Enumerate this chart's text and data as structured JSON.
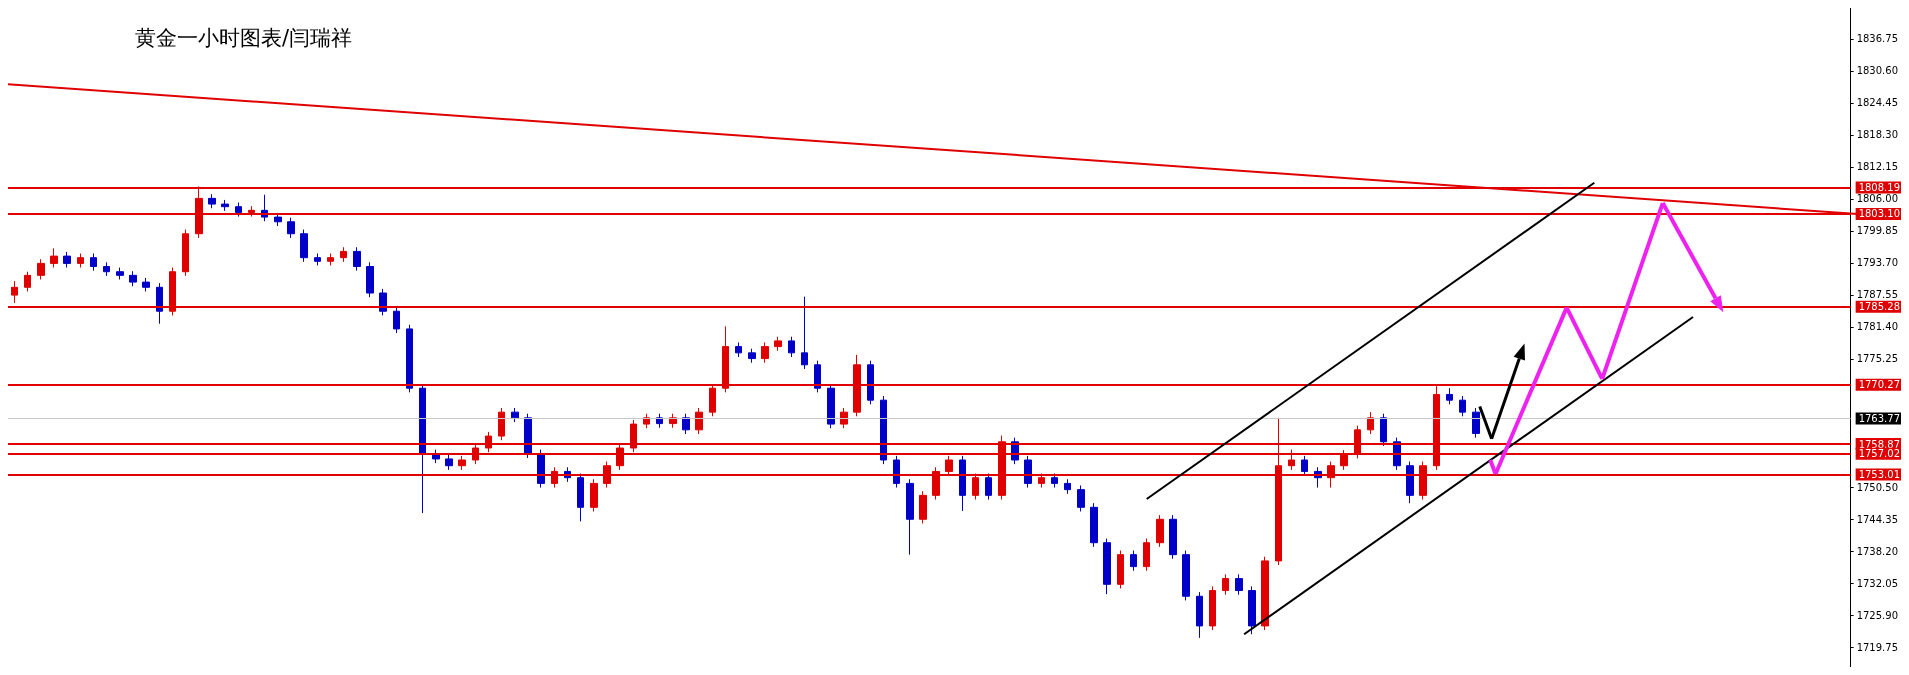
{
  "chart_data": {
    "type": "candlestick",
    "title": "黄金一小时图表/闫瑞祥",
    "categories": [
      null,
      null,
      null,
      null,
      null,
      null,
      null,
      null,
      null,
      null,
      null,
      null,
      null,
      null,
      null,
      null,
      null,
      null,
      null,
      null,
      null,
      null,
      null,
      null,
      null,
      null,
      null,
      null,
      null,
      null,
      null,
      null,
      null,
      null,
      null,
      null,
      null,
      null,
      null,
      null,
      null,
      null,
      null,
      null,
      null,
      null,
      null,
      null,
      null,
      null,
      null,
      null,
      null,
      null,
      null,
      null,
      null,
      null,
      null,
      null,
      null,
      null,
      null,
      null,
      null,
      null,
      null,
      null,
      null,
      null,
      null,
      null,
      null,
      null,
      null,
      null,
      null,
      null,
      null,
      null,
      null,
      null,
      null,
      null,
      null,
      null,
      null,
      null,
      null,
      null,
      null,
      null,
      null,
      null,
      null,
      null,
      null,
      null,
      null,
      null,
      null,
      null,
      null,
      null,
      null,
      null,
      null,
      null,
      null,
      null,
      null,
      null,
      null,
      null,
      null,
      null,
      null,
      null,
      null,
      null,
      null,
      null,
      null,
      null,
      null,
      null,
      null,
      null,
      null,
      null,
      null,
      null,
      null,
      null,
      null,
      null,
      null,
      null,
      null,
      null
    ],
    "ylim": [
      1716,
      1842.7
    ],
    "yticks": [
      {
        "value": 1719.75,
        "label": "1719.75"
      },
      {
        "value": 1725.9,
        "label": "1725.90"
      },
      {
        "value": 1732.05,
        "label": "1732.05"
      },
      {
        "value": 1738.2,
        "label": "1738.20"
      },
      {
        "value": 1744.35,
        "label": "1744.35"
      },
      {
        "value": 1750.5,
        "label": "1750.50"
      },
      {
        "value": 1775.25,
        "label": "1775.25"
      },
      {
        "value": 1781.4,
        "label": "1781.40"
      },
      {
        "value": 1787.55,
        "label": "1787.55"
      },
      {
        "value": 1793.7,
        "label": "1793.70"
      },
      {
        "value": 1799.85,
        "label": "1799.85"
      },
      {
        "value": 1806,
        "label": "1806.00"
      },
      {
        "value": 1812.15,
        "label": "1812.15"
      },
      {
        "value": 1818.3,
        "label": "1818.30"
      },
      {
        "value": 1824.45,
        "label": "1824.45"
      },
      {
        "value": 1830.6,
        "label": "1830.60"
      },
      {
        "value": 1836.75,
        "label": "1836.75"
      }
    ],
    "tick_labels": "y",
    "grid": false,
    "ref_lines": [
      {
        "axis": "y",
        "value": 1808.19,
        "label": "1808.19",
        "color": "#e00000"
      },
      {
        "axis": "y",
        "value": 1803.1,
        "label": "1803.10",
        "color": "#e00000"
      },
      {
        "axis": "y",
        "value": 1785.28,
        "label": "1785.28",
        "color": "#e00000"
      },
      {
        "axis": "y",
        "value": 1770.27,
        "label": "1770.27",
        "color": "#e00000"
      },
      {
        "axis": "y",
        "value": 1763.77,
        "label": "1763.77",
        "color": "#c8c8c8"
      },
      {
        "axis": "y",
        "value": 1758.87,
        "label": "1758.87",
        "color": "#e00000"
      },
      {
        "axis": "y",
        "value": 1757.02,
        "label": "1757.02",
        "color": "#e00000"
      },
      {
        "axis": "y",
        "value": 1753.01,
        "label": "1753.01",
        "color": "#e00000"
      }
    ],
    "series": [
      {
        "colors": [
          "#e00000",
          "#e00000",
          "#e00000",
          "#e00000",
          "#0000c8",
          "#e00000",
          "#0000c8",
          "#0000c8",
          "#0000c8",
          "#0000c8",
          "#0000c8",
          "#0000c8",
          "#e00000",
          "#e00000",
          "#e00000",
          "#0000c8",
          "#0000c8",
          "#0000c8",
          "#e00000",
          "#0000c8",
          "#0000c8",
          "#0000c8",
          "#0000c8",
          "#0000c8",
          "#e00000",
          "#e00000",
          "#0000c8",
          "#0000c8",
          "#0000c8",
          "#0000c8",
          "#0000c8",
          "#0000c8",
          "#0000c8",
          "#0000c8",
          "#e00000",
          "#e00000",
          "#e00000",
          "#e00000",
          "#0000c8",
          "#0000c8",
          "#0000c8",
          "#e00000",
          "#0000c8",
          "#0000c8",
          "#e00000",
          "#e00000",
          "#e00000",
          "#e00000",
          "#e00000",
          "#0000c8",
          "#e00000",
          "#0000c8",
          "#e00000",
          "#e00000",
          "#e00000",
          "#0000c8",
          "#0000c8",
          "#e00000",
          "#e00000",
          "#0000c8",
          "#0000c8",
          "#0000c8",
          "#0000c8",
          "#e00000",
          "#e00000",
          "#0000c8",
          "#0000c8",
          "#0000c8",
          "#0000c8",
          "#e00000",
          "#e00000",
          "#e00000",
          "#0000c8",
          "#e00000",
          "#0000c8",
          "#e00000",
          "#0000c8",
          "#0000c8",
          "#e00000",
          "#0000c8",
          "#0000c8",
          "#0000c8",
          "#0000c8",
          "#0000c8",
          "#e00000",
          "#0000c8",
          "#e00000",
          "#e00000",
          "#0000c8",
          "#0000c8",
          "#0000c8",
          "#e00000",
          "#e00000",
          "#0000c8",
          "#0000c8",
          "#e00000",
          "#e00000",
          "#e00000",
          "#0000c8",
          "#0000c8",
          "#e00000",
          "#e00000",
          "#e00000",
          "#e00000",
          "#0000c8",
          "#0000c8",
          "#0000c8",
          "#e00000",
          "#e00000",
          "#0000c8",
          "#0000c8",
          "#0000c8",
          null,
          null,
          null,
          null,
          null,
          null,
          null,
          null,
          null,
          null,
          null,
          null,
          null,
          null,
          null,
          null,
          null,
          null,
          null,
          null,
          null,
          null,
          null,
          null,
          null,
          null,
          null,
          null
        ],
        "ohlc": [
          [
            1787.5,
            1790.2,
            1786.0,
            1789.0
          ],
          [
            1789.0,
            1792.0,
            1788.2,
            1791.3
          ],
          [
            1791.3,
            1794.4,
            1790.5,
            1793.6
          ],
          [
            1793.6,
            1796.5,
            1792.8,
            1795.0
          ],
          [
            1795.0,
            1795.8,
            1792.8,
            1793.6
          ],
          [
            1793.6,
            1795.5,
            1792.8,
            1794.7
          ],
          [
            1794.7,
            1795.5,
            1792.2,
            1793.0
          ],
          [
            1793.0,
            1793.8,
            1791.2,
            1792.0
          ],
          [
            1792.0,
            1792.8,
            1790.5,
            1791.3
          ],
          [
            1791.3,
            1792.1,
            1789.2,
            1790.0
          ],
          [
            1790.0,
            1790.8,
            1788.2,
            1789.0
          ],
          [
            1789.0,
            1789.8,
            1782.0,
            1784.4
          ],
          [
            1784.4,
            1792.8,
            1783.6,
            1792.0
          ],
          [
            1792.0,
            1800.1,
            1791.2,
            1799.3
          ],
          [
            1799.3,
            1808.4,
            1798.5,
            1806.1
          ],
          [
            1806.1,
            1806.9,
            1804.2,
            1805.0
          ],
          [
            1805.0,
            1805.8,
            1803.7,
            1804.5
          ],
          [
            1804.5,
            1805.3,
            1802.6,
            1803.4
          ],
          [
            1803.4,
            1804.6,
            1802.6,
            1803.8
          ],
          [
            1803.8,
            1806.8,
            1801.7,
            1802.5
          ],
          [
            1802.5,
            1803.3,
            1800.8,
            1801.6
          ],
          [
            1801.6,
            1802.4,
            1798.5,
            1799.3
          ],
          [
            1799.3,
            1800.1,
            1793.9,
            1794.7
          ],
          [
            1794.7,
            1795.5,
            1793.2,
            1794.0
          ],
          [
            1794.0,
            1795.5,
            1793.2,
            1794.7
          ],
          [
            1794.7,
            1796.7,
            1793.9,
            1795.9
          ],
          [
            1795.9,
            1796.7,
            1792.2,
            1793.0
          ],
          [
            1793.0,
            1793.8,
            1787.1,
            1787.9
          ],
          [
            1787.9,
            1788.7,
            1783.6,
            1784.4
          ],
          [
            1784.4,
            1785.2,
            1780.2,
            1781.0
          ],
          [
            1781.0,
            1781.8,
            1768.8,
            1769.6
          ],
          [
            1769.6,
            1770.4,
            1745.6,
            1757.0
          ],
          [
            1757.0,
            1757.8,
            1755.2,
            1756.0
          ],
          [
            1756.0,
            1756.8,
            1753.9,
            1754.7
          ],
          [
            1754.7,
            1756.6,
            1753.9,
            1755.8
          ],
          [
            1755.8,
            1758.9,
            1755.0,
            1758.1
          ],
          [
            1758.1,
            1761.2,
            1757.3,
            1760.4
          ],
          [
            1760.4,
            1765.8,
            1759.6,
            1765.0
          ],
          [
            1765.0,
            1765.8,
            1763.1,
            1763.9
          ],
          [
            1763.9,
            1764.7,
            1756.2,
            1757.0
          ],
          [
            1757.0,
            1757.8,
            1750.5,
            1751.3
          ],
          [
            1751.3,
            1754.4,
            1750.5,
            1753.6
          ],
          [
            1753.6,
            1754.4,
            1751.6,
            1752.4
          ],
          [
            1752.4,
            1753.2,
            1744.0,
            1746.7
          ],
          [
            1746.7,
            1752.1,
            1745.9,
            1751.3
          ],
          [
            1751.3,
            1755.5,
            1750.5,
            1754.7
          ],
          [
            1754.7,
            1758.9,
            1753.9,
            1758.1
          ],
          [
            1758.1,
            1763.5,
            1757.3,
            1762.7
          ],
          [
            1762.7,
            1764.7,
            1761.9,
            1763.9
          ],
          [
            1763.9,
            1764.7,
            1762.0,
            1762.8
          ],
          [
            1762.8,
            1764.7,
            1762.0,
            1763.9
          ],
          [
            1763.9,
            1764.7,
            1760.8,
            1761.6
          ],
          [
            1761.6,
            1765.8,
            1760.8,
            1765.0
          ],
          [
            1765.0,
            1770.4,
            1764.2,
            1769.6
          ],
          [
            1769.6,
            1781.5,
            1768.8,
            1777.6
          ],
          [
            1777.6,
            1778.4,
            1775.6,
            1776.4
          ],
          [
            1776.4,
            1777.2,
            1774.5,
            1775.3
          ],
          [
            1775.3,
            1778.4,
            1774.5,
            1777.6
          ],
          [
            1777.6,
            1779.5,
            1776.8,
            1778.7
          ],
          [
            1778.7,
            1779.5,
            1775.6,
            1776.4
          ],
          [
            1776.4,
            1787.2,
            1773.3,
            1774.1
          ],
          [
            1774.1,
            1774.9,
            1768.8,
            1769.6
          ],
          [
            1769.6,
            1770.4,
            1761.9,
            1762.7
          ],
          [
            1762.7,
            1765.8,
            1761.9,
            1765.0
          ],
          [
            1765.0,
            1776.0,
            1764.2,
            1774.1
          ],
          [
            1774.1,
            1774.9,
            1766.5,
            1767.3
          ],
          [
            1767.3,
            1768.1,
            1755.0,
            1755.8
          ],
          [
            1755.8,
            1756.6,
            1750.5,
            1751.3
          ],
          [
            1751.3,
            1752.1,
            1737.6,
            1744.4
          ],
          [
            1744.4,
            1749.8,
            1743.6,
            1749.0
          ],
          [
            1749.0,
            1754.4,
            1748.2,
            1753.6
          ],
          [
            1753.6,
            1756.6,
            1752.8,
            1755.8
          ],
          [
            1755.8,
            1756.6,
            1746.0,
            1749.0
          ],
          [
            1749.0,
            1753.2,
            1748.2,
            1752.4
          ],
          [
            1752.4,
            1753.2,
            1748.2,
            1749.0
          ],
          [
            1749.0,
            1760.5,
            1748.2,
            1759.3
          ],
          [
            1759.3,
            1760.1,
            1755.0,
            1755.8
          ],
          [
            1755.8,
            1756.6,
            1750.5,
            1751.3
          ],
          [
            1751.3,
            1753.2,
            1750.5,
            1752.4
          ],
          [
            1752.4,
            1753.2,
            1750.5,
            1751.3
          ],
          [
            1751.3,
            1752.1,
            1749.3,
            1750.1
          ],
          [
            1750.1,
            1750.9,
            1745.9,
            1746.7
          ],
          [
            1746.7,
            1747.5,
            1739.1,
            1739.9
          ],
          [
            1739.9,
            1740.7,
            1730.0,
            1731.9
          ],
          [
            1731.9,
            1738.4,
            1731.1,
            1737.6
          ],
          [
            1737.6,
            1738.4,
            1734.5,
            1735.3
          ],
          [
            1735.3,
            1740.7,
            1734.5,
            1739.9
          ],
          [
            1739.9,
            1745.2,
            1739.1,
            1744.4
          ],
          [
            1744.4,
            1745.2,
            1736.8,
            1737.6
          ],
          [
            1737.6,
            1738.4,
            1728.8,
            1729.6
          ],
          [
            1729.6,
            1730.4,
            1721.6,
            1723.9
          ],
          [
            1723.9,
            1731.5,
            1723.1,
            1730.7
          ],
          [
            1730.7,
            1733.8,
            1729.9,
            1733.0
          ],
          [
            1733.0,
            1733.8,
            1729.9,
            1730.7
          ],
          [
            1730.7,
            1731.5,
            1722.3,
            1723.9
          ],
          [
            1723.9,
            1737.2,
            1723.1,
            1736.4
          ],
          [
            1736.4,
            1763.9,
            1735.6,
            1754.7
          ],
          [
            1754.7,
            1757.8,
            1753.9,
            1755.8
          ],
          [
            1755.8,
            1756.6,
            1752.8,
            1753.6
          ],
          [
            1753.6,
            1754.4,
            1750.5,
            1752.4
          ],
          [
            1752.4,
            1755.5,
            1750.5,
            1754.7
          ],
          [
            1754.7,
            1757.7,
            1753.9,
            1756.9
          ],
          [
            1756.9,
            1762.4,
            1756.1,
            1761.6
          ],
          [
            1761.6,
            1765.0,
            1760.8,
            1763.9
          ],
          [
            1763.9,
            1764.7,
            1758.5,
            1759.3
          ],
          [
            1759.3,
            1760.1,
            1753.9,
            1754.7
          ],
          [
            1754.7,
            1755.5,
            1747.5,
            1749.0
          ],
          [
            1749.0,
            1755.5,
            1748.2,
            1754.7
          ],
          [
            1754.7,
            1770.0,
            1753.9,
            1768.4
          ],
          [
            1768.4,
            1769.6,
            1766.5,
            1767.3
          ],
          [
            1767.3,
            1768.1,
            1764.2,
            1765.0
          ],
          [
            1765.0,
            1765.8,
            1760.1,
            1760.9
          ],
          null,
          null,
          null,
          null,
          null,
          null,
          null,
          null,
          null,
          null,
          null,
          null,
          null,
          null,
          null,
          null,
          null,
          null,
          null,
          null,
          null,
          null,
          null,
          null,
          null,
          null,
          null,
          null
        ]
      }
    ]
  }
}
